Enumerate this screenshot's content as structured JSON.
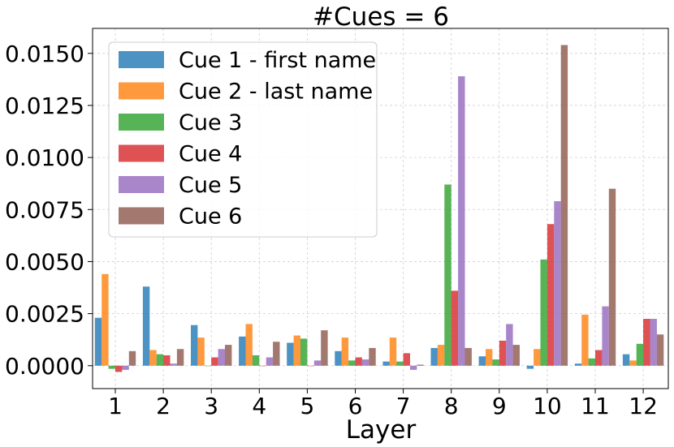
{
  "chart_data": {
    "type": "bar",
    "title": "#Cues = 6",
    "xlabel": "Layer",
    "ylabel": "",
    "categories": [
      "1",
      "2",
      "3",
      "4",
      "5",
      "6",
      "7",
      "8",
      "9",
      "10",
      "11",
      "12"
    ],
    "ylim": [
      -0.0011,
      0.0162
    ],
    "y_ticks": [
      "0.0000",
      "0.0025",
      "0.0050",
      "0.0075",
      "0.0100",
      "0.0125",
      "0.0150"
    ],
    "y_tick_values": [
      0,
      0.0025,
      0.005,
      0.0075,
      0.01,
      0.0125,
      0.015
    ],
    "grid": true,
    "legend_position": "top-left",
    "series": [
      {
        "name": "Cue 1 - first name",
        "color": "#1f77b4",
        "values": [
          0.0023,
          0.0038,
          0.00195,
          0.0014,
          0.0011,
          0.0007,
          0.0002,
          0.00085,
          0.00045,
          -0.00015,
          0.0001,
          0.00055
        ]
      },
      {
        "name": "Cue 2 - last name",
        "color": "#ff7f0e",
        "values": [
          0.0044,
          0.00075,
          0.00135,
          0.002,
          0.00145,
          0.00135,
          0.00135,
          0.001,
          0.0008,
          0.0008,
          0.00245,
          0.00025
        ]
      },
      {
        "name": "Cue 3",
        "color": "#2ca02c",
        "values": [
          -0.00015,
          0.00055,
          0.0,
          0.0005,
          0.0013,
          0.00025,
          0.0002,
          0.0087,
          0.0003,
          0.0051,
          0.00035,
          0.00105
        ]
      },
      {
        "name": "Cue 4",
        "color": "#d62728",
        "values": [
          -0.0003,
          0.0005,
          0.0004,
          0.0,
          0.0,
          0.0004,
          0.0006,
          0.0036,
          0.0012,
          0.0068,
          0.00075,
          0.00225
        ]
      },
      {
        "name": "Cue 5",
        "color": "#9467bd",
        "values": [
          -0.0002,
          0.0001,
          0.0008,
          0.0004,
          0.00025,
          0.0003,
          -0.0002,
          0.0139,
          0.002,
          0.0079,
          0.00285,
          0.00225
        ]
      },
      {
        "name": "Cue 6",
        "color": "#8c564b",
        "values": [
          0.0007,
          0.0008,
          0.001,
          0.00115,
          0.0017,
          0.00085,
          5e-05,
          0.00085,
          0.001,
          0.0154,
          0.0085,
          0.0015
        ]
      }
    ]
  }
}
